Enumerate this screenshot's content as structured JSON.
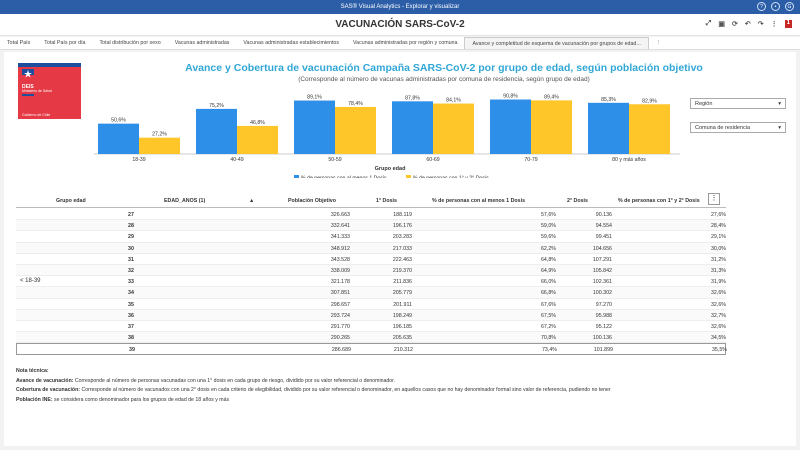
{
  "app": {
    "title": "SAS® Visual Analytics - Explorar y visualizar",
    "user_initial": "G"
  },
  "report": {
    "title": "VACUNACIÓN SARS-CoV-2",
    "badge": "1"
  },
  "tabs": [
    "Total País",
    "Total País por día",
    "Total distribución por sexo",
    "Vacunas administradas",
    "Vacunas administradas establecimientos",
    "Vacunas administradas por región y comuna",
    "Avance y completitud de esquema de vacunación por grupos de edad..."
  ],
  "logo": {
    "line1": "DEIS",
    "line2": "Ministerio de Salud",
    "line3": "Gobierno de Chile"
  },
  "filters": {
    "region_label": "Región",
    "comuna_label": "Comuna de residencia"
  },
  "chart_data": {
    "type": "bar",
    "title": "Avance y Cobertura de vacunación Campaña SARS-CoV-2  por grupo de edad, según población objetivo",
    "subtitle": "(Corresponde al número de vacunas administradas por comuna de residencia, según grupo de edad)",
    "xlabel": "Grupo edad",
    "categories": [
      "18-39",
      "40-49",
      "50-59",
      "60-69",
      "70-79",
      "80 y más años"
    ],
    "series": [
      {
        "name": "% de personas con al menos 1 Dosis",
        "color": "#2d8fe8",
        "values": [
          50.6,
          75.2,
          89.1,
          87.8,
          90.8,
          85.3
        ],
        "labels": [
          "50,6%",
          "75,2%",
          "89,1%",
          "87,8%",
          "90,8%",
          "85,3%"
        ]
      },
      {
        "name": "% de personas con 1° y 2° Dosis",
        "color": "#ffc629",
        "values": [
          27.2,
          46.8,
          78.4,
          84.1,
          89.4,
          82.9
        ],
        "labels": [
          "27,2%",
          "46,8%",
          "78,4%",
          "84,1%",
          "89,4%",
          "82,9%"
        ]
      }
    ],
    "ylim": [
      0,
      100
    ]
  },
  "table": {
    "headers": [
      "Grupo edad",
      "EDAD_ANOS (1)",
      "Población Objetivo",
      "1° Dosis",
      "% de personas con al menos 1 Dosis",
      "2° Dosis",
      "% de personas con 1° y 2° Dosis"
    ],
    "group_label": "< 18-39",
    "rows": [
      [
        "27",
        "326.663",
        "188.119",
        "57,6%",
        "90.136",
        "27,6%"
      ],
      [
        "28",
        "332.641",
        "196.176",
        "59,0%",
        "94.554",
        "28,4%"
      ],
      [
        "29",
        "341.333",
        "203.283",
        "59,6%",
        "99.451",
        "29,1%"
      ],
      [
        "30",
        "348.912",
        "217.033",
        "62,2%",
        "104.656",
        "30,0%"
      ],
      [
        "31",
        "343.528",
        "222.463",
        "64,8%",
        "107.291",
        "31,2%"
      ],
      [
        "32",
        "338.009",
        "219.370",
        "64,9%",
        "105.842",
        "31,3%"
      ],
      [
        "33",
        "321.178",
        "211.836",
        "66,0%",
        "102.361",
        "31,9%"
      ],
      [
        "34",
        "307.851",
        "205.779",
        "66,8%",
        "100.302",
        "32,6%"
      ],
      [
        "35",
        "298.657",
        "201.911",
        "67,6%",
        "97.270",
        "32,6%"
      ],
      [
        "36",
        "293.724",
        "198.249",
        "67,5%",
        "95.988",
        "32,7%"
      ],
      [
        "37",
        "291.770",
        "196.185",
        "67,2%",
        "95.122",
        "32,6%"
      ],
      [
        "38",
        "290.265",
        "205.635",
        "70,8%",
        "100.136",
        "34,5%"
      ],
      [
        "39",
        "286.689",
        "210.312",
        "73,4%",
        "101.899",
        "35,5%"
      ]
    ]
  },
  "notes": {
    "title": "Nota técnica:",
    "n1_label": "Avance de vacunación:",
    "n1": " Corresponde al número de personas vacunadas con una 1° dosis en cada grupo de riesgo, dividido por su valor referencial o denominador.",
    "n2_label": "Cobertura de vacunación:",
    "n2": " Corresponde al número de vacunados con una 2° dosis en cada criterio de elegibilidad, dividido por su valor referencial o denominador, en aquellos casos que no hay denominador formal sino valor de referencia, pudiendo no tener",
    "n3_label": "Población INE:",
    "n3": " se considera como denominador para los grupos de edad de 18 años y más"
  }
}
